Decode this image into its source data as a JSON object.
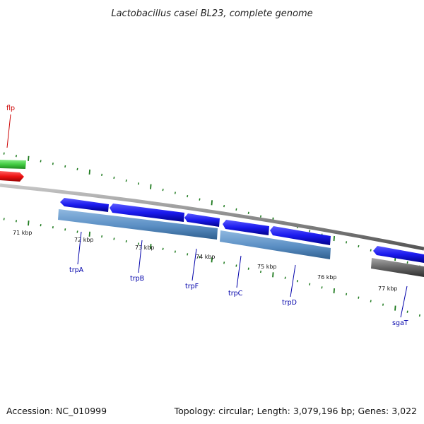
{
  "title": "Lactobacillus casei BL23, complete genome",
  "footer": {
    "accession": "Accession: NC_010999",
    "summary": "Topology: circular; Length: 3,079,196 bp; Genes: 3,022"
  },
  "kbp_labels": [
    "71 kbp",
    "72 kbp",
    "73 kbp",
    "74 kbp",
    "75 kbp",
    "76 kbp",
    "77 kbp"
  ],
  "genes": [
    {
      "name": "flp",
      "color": "#cc0000"
    },
    {
      "name": "trpA",
      "color": "#0000aa"
    },
    {
      "name": "trpB",
      "color": "#0000aa"
    },
    {
      "name": "trpF",
      "color": "#0000aa"
    },
    {
      "name": "trpC",
      "color": "#0000aa"
    },
    {
      "name": "trpD",
      "color": "#0000aa"
    },
    {
      "name": "sgaT",
      "color": "#0000aa"
    }
  ],
  "colors": {
    "backbone": "#8c8c8c",
    "tick": "#1e7a1e",
    "gene_blue": "#1a1aee",
    "operon_steelblue": "#5b8fc4",
    "gene_green": "#44cc44",
    "gene_red": "#ee1111",
    "gene_gray": "#666666"
  }
}
